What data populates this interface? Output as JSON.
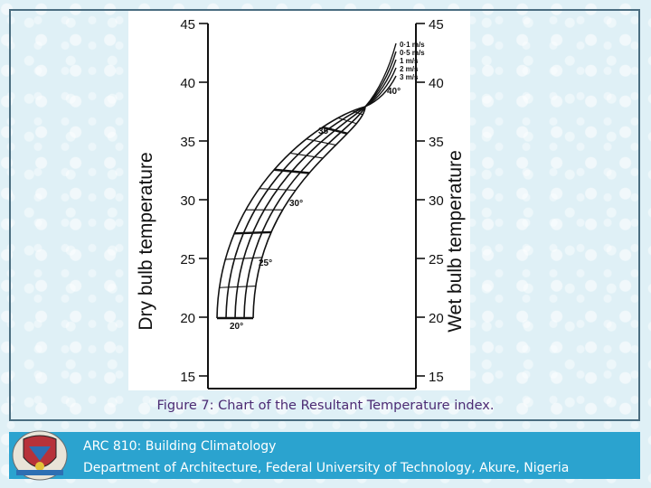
{
  "figure": {
    "left_axis_label": "Dry bulb temperature",
    "right_axis_label": "Wet bulb temperature",
    "left_ticks": [
      "15",
      "20",
      "25",
      "30",
      "35",
      "40",
      "45"
    ],
    "right_ticks": [
      "15",
      "20",
      "25",
      "30",
      "35",
      "40",
      "45"
    ],
    "wind_speed_labels": [
      "0·1 m/s",
      "0·5 m/s",
      "1 m/s",
      "2 m/s",
      "3 m/s"
    ],
    "curve_labels": [
      "20°",
      "25°",
      "30°",
      "35°",
      "40°"
    ],
    "caption": "Figure 7: Chart of the Resultant Temperature index."
  },
  "footer": {
    "course": "ARC 810: Building Climatology",
    "department": "Department of Architecture, Federal University of Technology, Akure, Nigeria"
  },
  "colors": {
    "footer_bar": "#2ba3cf",
    "caption": "#4b2a73",
    "frame": "#4a6d80"
  }
}
